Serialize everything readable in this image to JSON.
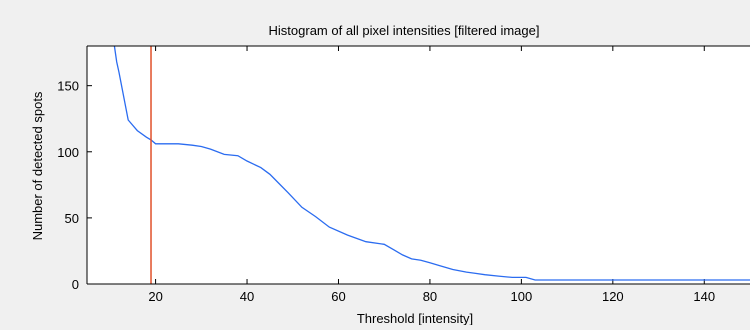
{
  "chart_data": {
    "type": "line",
    "title": "Histogram of all pixel intensities [filtered image]",
    "xlabel": "Threshold [intensity]",
    "ylabel": "Number of detected spots",
    "xlim": [
      5,
      150
    ],
    "ylim": [
      0,
      180
    ],
    "xticks": [
      20,
      40,
      60,
      80,
      100,
      120,
      140
    ],
    "yticks": [
      0,
      50,
      100,
      150
    ],
    "grid": false,
    "series": [
      {
        "color": "#2b6cf0",
        "x": [
          11,
          11.5,
          12,
          14,
          16,
          18,
          19,
          20,
          22,
          25,
          28,
          30,
          32,
          35,
          38,
          40,
          43,
          45,
          47,
          49,
          52,
          55,
          58,
          62,
          66,
          70,
          72,
          74,
          76,
          78,
          80,
          82,
          85,
          88,
          90,
          92,
          95,
          98,
          101,
          103,
          105,
          110,
          120,
          130,
          140,
          150
        ],
        "y": [
          180,
          168,
          160,
          124,
          116,
          111,
          109,
          106,
          106,
          106,
          105,
          104,
          102,
          98,
          97,
          93,
          88,
          83,
          76,
          69,
          58,
          51,
          43,
          37,
          32,
          30,
          26,
          22,
          19,
          18,
          16,
          14,
          11,
          9,
          8,
          7,
          6,
          5,
          5,
          3,
          3,
          3,
          3,
          3,
          3,
          3
        ]
      }
    ],
    "marker_line": {
      "x": 19,
      "color": "#e0502a"
    }
  }
}
